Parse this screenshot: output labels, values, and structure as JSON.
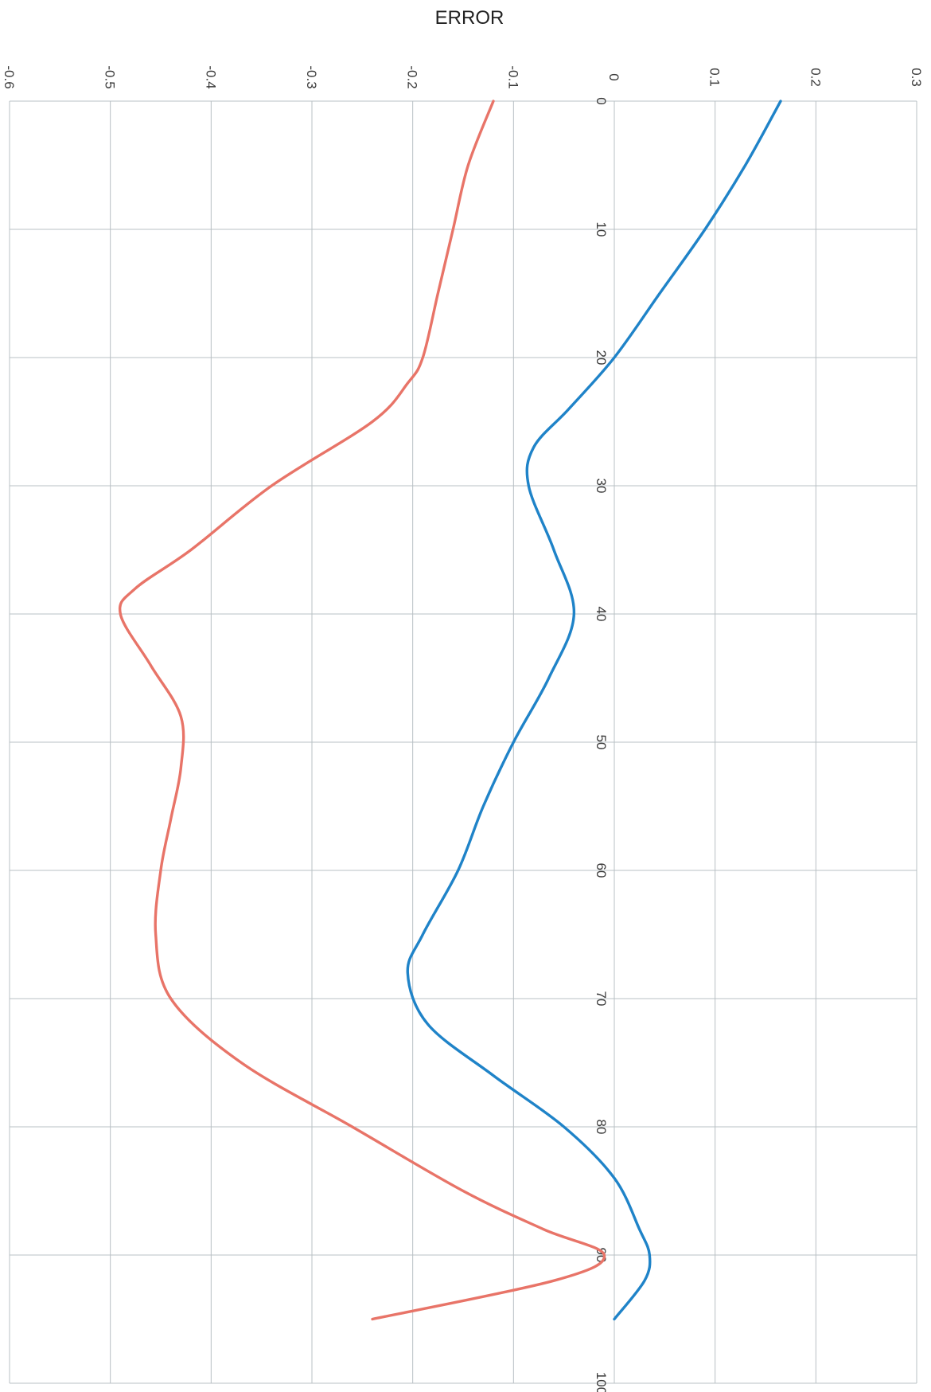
{
  "chart_data": {
    "type": "line",
    "title": "ERROR",
    "orientation": "rotated-90-clockwise",
    "x_axis": {
      "label": "",
      "range": [
        0,
        100
      ],
      "ticks": [
        "0",
        "10",
        "20",
        "30",
        "40",
        "50",
        "60",
        "70",
        "80",
        "90",
        "100"
      ]
    },
    "y_axis": {
      "label": "",
      "range": [
        -0.6,
        0.3
      ],
      "ticks": [
        "-0.6",
        "-0.5",
        "-0.4",
        "-0.3",
        "-0.2",
        "-0.1",
        "0",
        "0.1",
        "0.2",
        "0.3"
      ]
    },
    "grid": true,
    "series": [
      {
        "color": "#1f83c8",
        "points": [
          [
            0,
            0.165
          ],
          [
            5,
            0.13
          ],
          [
            10,
            0.09
          ],
          [
            15,
            0.045
          ],
          [
            20,
            0.0
          ],
          [
            24,
            -0.045
          ],
          [
            27,
            -0.08
          ],
          [
            30,
            -0.085
          ],
          [
            35,
            -0.06
          ],
          [
            40,
            -0.04
          ],
          [
            45,
            -0.065
          ],
          [
            50,
            -0.1
          ],
          [
            55,
            -0.13
          ],
          [
            60,
            -0.155
          ],
          [
            65,
            -0.19
          ],
          [
            68,
            -0.205
          ],
          [
            72,
            -0.185
          ],
          [
            76,
            -0.12
          ],
          [
            80,
            -0.05
          ],
          [
            84,
            0.0
          ],
          [
            88,
            0.025
          ],
          [
            90,
            0.035
          ],
          [
            92,
            0.03
          ],
          [
            95,
            0.0
          ]
        ]
      },
      {
        "color": "#e87468",
        "points": [
          [
            0,
            -0.12
          ],
          [
            5,
            -0.145
          ],
          [
            10,
            -0.16
          ],
          [
            15,
            -0.175
          ],
          [
            20,
            -0.19
          ],
          [
            22,
            -0.205
          ],
          [
            25,
            -0.24
          ],
          [
            30,
            -0.34
          ],
          [
            35,
            -0.42
          ],
          [
            38,
            -0.475
          ],
          [
            40,
            -0.49
          ],
          [
            44,
            -0.46
          ],
          [
            48,
            -0.43
          ],
          [
            52,
            -0.43
          ],
          [
            56,
            -0.44
          ],
          [
            60,
            -0.45
          ],
          [
            65,
            -0.455
          ],
          [
            70,
            -0.44
          ],
          [
            75,
            -0.37
          ],
          [
            80,
            -0.26
          ],
          [
            85,
            -0.15
          ],
          [
            88,
            -0.07
          ],
          [
            90,
            -0.01
          ],
          [
            92,
            -0.06
          ],
          [
            95,
            -0.24
          ]
        ]
      }
    ]
  }
}
